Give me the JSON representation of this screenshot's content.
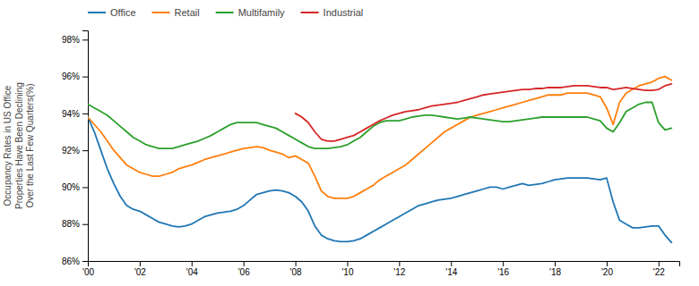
{
  "chart_data": {
    "type": "line",
    "ylabel": "Occupancy Rates in US Office\nProperties Have Been Declining\nOver the Last Few Quarters(%)",
    "xlim": [
      2000,
      2022.8
    ],
    "xticks": [
      {
        "value": 2000,
        "label": "'00"
      },
      {
        "value": 2002,
        "label": "'02"
      },
      {
        "value": 2004,
        "label": "'04"
      },
      {
        "value": 2006,
        "label": "'06"
      },
      {
        "value": 2008,
        "label": "'08"
      },
      {
        "value": 2010,
        "label": "'10"
      },
      {
        "value": 2012,
        "label": "'12"
      },
      {
        "value": 2014,
        "label": "'14"
      },
      {
        "value": 2016,
        "label": "'16"
      },
      {
        "value": 2018,
        "label": "'18"
      },
      {
        "value": 2020,
        "label": "'20"
      },
      {
        "value": 2022,
        "label": "'22"
      }
    ],
    "ylim": [
      86,
      98.5
    ],
    "yticks": [
      {
        "value": 86,
        "label": "86%"
      },
      {
        "value": 88,
        "label": "88%"
      },
      {
        "value": 90,
        "label": "90%"
      },
      {
        "value": 92,
        "label": "92%"
      },
      {
        "value": 94,
        "label": "94%"
      },
      {
        "value": 96,
        "label": "96%"
      },
      {
        "value": 98,
        "label": "98%"
      }
    ],
    "grid": false,
    "legend": "top-left",
    "series": [
      {
        "name": "Office",
        "x": [
          2000.0,
          2000.25,
          2000.5,
          2000.75,
          2001.0,
          2001.25,
          2001.5,
          2001.75,
          2002.0,
          2002.25,
          2002.5,
          2002.75,
          2003.0,
          2003.25,
          2003.5,
          2003.75,
          2004.0,
          2004.25,
          2004.5,
          2004.75,
          2005.0,
          2005.25,
          2005.5,
          2005.75,
          2006.0,
          2006.25,
          2006.5,
          2006.75,
          2007.0,
          2007.25,
          2007.5,
          2007.75,
          2008.0,
          2008.25,
          2008.5,
          2008.75,
          2009.0,
          2009.25,
          2009.5,
          2009.75,
          2010.0,
          2010.25,
          2010.5,
          2010.75,
          2011.0,
          2011.25,
          2011.5,
          2011.75,
          2012.0,
          2012.25,
          2012.5,
          2012.75,
          2013.0,
          2013.25,
          2013.5,
          2013.75,
          2014.0,
          2014.25,
          2014.5,
          2014.75,
          2015.0,
          2015.25,
          2015.5,
          2015.75,
          2016.0,
          2016.25,
          2016.5,
          2016.75,
          2017.0,
          2017.25,
          2017.5,
          2017.75,
          2018.0,
          2018.25,
          2018.5,
          2018.75,
          2019.0,
          2019.25,
          2019.5,
          2019.75,
          2020.0,
          2020.25,
          2020.5,
          2020.75,
          2021.0,
          2021.25,
          2021.5,
          2021.75,
          2022.0,
          2022.25,
          2022.5
        ],
        "values": [
          93.8,
          93.0,
          92.0,
          91.0,
          90.2,
          89.5,
          89.0,
          88.8,
          88.7,
          88.5,
          88.3,
          88.1,
          88.0,
          87.9,
          87.85,
          87.9,
          88.0,
          88.2,
          88.4,
          88.5,
          88.6,
          88.65,
          88.7,
          88.8,
          89.0,
          89.3,
          89.6,
          89.7,
          89.8,
          89.85,
          89.8,
          89.7,
          89.5,
          89.2,
          88.7,
          87.9,
          87.4,
          87.2,
          87.1,
          87.05,
          87.05,
          87.1,
          87.2,
          87.4,
          87.6,
          87.8,
          88.0,
          88.2,
          88.4,
          88.6,
          88.8,
          89.0,
          89.1,
          89.2,
          89.3,
          89.35,
          89.4,
          89.5,
          89.6,
          89.7,
          89.8,
          89.9,
          90.0,
          90.0,
          89.9,
          90.0,
          90.1,
          90.2,
          90.1,
          90.15,
          90.2,
          90.3,
          90.4,
          90.45,
          90.5,
          90.5,
          90.5,
          90.5,
          90.45,
          90.4,
          90.5,
          89.2,
          88.2,
          88.0,
          87.8,
          87.8,
          87.85,
          87.9,
          87.9,
          87.4,
          87.0
        ]
      },
      {
        "name": "Retail",
        "x": [
          2000.0,
          2000.25,
          2000.5,
          2000.75,
          2001.0,
          2001.25,
          2001.5,
          2001.75,
          2002.0,
          2002.25,
          2002.5,
          2002.75,
          2003.0,
          2003.25,
          2003.5,
          2003.75,
          2004.0,
          2004.25,
          2004.5,
          2004.75,
          2005.0,
          2005.25,
          2005.5,
          2005.75,
          2006.0,
          2006.25,
          2006.5,
          2006.75,
          2007.0,
          2007.25,
          2007.5,
          2007.75,
          2008.0,
          2008.25,
          2008.5,
          2008.75,
          2009.0,
          2009.25,
          2009.5,
          2009.75,
          2010.0,
          2010.25,
          2010.5,
          2010.75,
          2011.0,
          2011.25,
          2011.5,
          2011.75,
          2012.0,
          2012.25,
          2012.5,
          2012.75,
          2013.0,
          2013.25,
          2013.5,
          2013.75,
          2014.0,
          2014.25,
          2014.5,
          2014.75,
          2015.0,
          2015.25,
          2015.5,
          2015.75,
          2016.0,
          2016.25,
          2016.5,
          2016.75,
          2017.0,
          2017.25,
          2017.5,
          2017.75,
          2018.0,
          2018.25,
          2018.5,
          2018.75,
          2019.0,
          2019.25,
          2019.5,
          2019.75,
          2020.0,
          2020.25,
          2020.5,
          2020.75,
          2021.0,
          2021.25,
          2021.5,
          2021.75,
          2022.0,
          2022.25,
          2022.5
        ],
        "values": [
          93.8,
          93.4,
          93.0,
          92.5,
          92.0,
          91.6,
          91.2,
          91.0,
          90.8,
          90.7,
          90.6,
          90.6,
          90.7,
          90.8,
          91.0,
          91.1,
          91.2,
          91.35,
          91.5,
          91.6,
          91.7,
          91.8,
          91.9,
          92.0,
          92.1,
          92.15,
          92.2,
          92.15,
          92.0,
          91.9,
          91.8,
          91.6,
          91.7,
          91.5,
          91.3,
          90.6,
          89.8,
          89.5,
          89.4,
          89.4,
          89.4,
          89.5,
          89.7,
          89.9,
          90.1,
          90.4,
          90.6,
          90.8,
          91.0,
          91.2,
          91.5,
          91.8,
          92.1,
          92.4,
          92.7,
          93.0,
          93.2,
          93.4,
          93.6,
          93.8,
          93.9,
          94.0,
          94.1,
          94.2,
          94.3,
          94.4,
          94.5,
          94.6,
          94.7,
          94.8,
          94.9,
          95.0,
          95.0,
          95.0,
          95.1,
          95.1,
          95.1,
          95.1,
          95.0,
          94.9,
          94.3,
          93.4,
          94.6,
          95.1,
          95.3,
          95.5,
          95.6,
          95.7,
          95.9,
          96.0,
          95.8
        ]
      },
      {
        "name": "Multifamily",
        "x": [
          2000.0,
          2000.25,
          2000.5,
          2000.75,
          2001.0,
          2001.25,
          2001.5,
          2001.75,
          2002.0,
          2002.25,
          2002.5,
          2002.75,
          2003.0,
          2003.25,
          2003.5,
          2003.75,
          2004.0,
          2004.25,
          2004.5,
          2004.75,
          2005.0,
          2005.25,
          2005.5,
          2005.75,
          2006.0,
          2006.25,
          2006.5,
          2006.75,
          2007.0,
          2007.25,
          2007.5,
          2007.75,
          2008.0,
          2008.25,
          2008.5,
          2008.75,
          2009.0,
          2009.25,
          2009.5,
          2009.75,
          2010.0,
          2010.25,
          2010.5,
          2010.75,
          2011.0,
          2011.25,
          2011.5,
          2011.75,
          2012.0,
          2012.25,
          2012.5,
          2012.75,
          2013.0,
          2013.25,
          2013.5,
          2013.75,
          2014.0,
          2014.25,
          2014.5,
          2014.75,
          2015.0,
          2015.25,
          2015.5,
          2015.75,
          2016.0,
          2016.25,
          2016.5,
          2016.75,
          2017.0,
          2017.25,
          2017.5,
          2017.75,
          2018.0,
          2018.25,
          2018.5,
          2018.75,
          2019.0,
          2019.25,
          2019.5,
          2019.75,
          2020.0,
          2020.25,
          2020.5,
          2020.75,
          2021.0,
          2021.25,
          2021.5,
          2021.75,
          2022.0,
          2022.25,
          2022.5
        ],
        "values": [
          94.5,
          94.3,
          94.1,
          93.9,
          93.6,
          93.3,
          93.0,
          92.7,
          92.5,
          92.3,
          92.2,
          92.1,
          92.1,
          92.1,
          92.2,
          92.3,
          92.4,
          92.5,
          92.65,
          92.8,
          93.0,
          93.2,
          93.4,
          93.5,
          93.5,
          93.5,
          93.5,
          93.4,
          93.3,
          93.2,
          93.0,
          92.8,
          92.6,
          92.4,
          92.2,
          92.1,
          92.1,
          92.1,
          92.15,
          92.2,
          92.3,
          92.5,
          92.7,
          93.0,
          93.3,
          93.5,
          93.6,
          93.6,
          93.6,
          93.7,
          93.8,
          93.85,
          93.9,
          93.9,
          93.85,
          93.8,
          93.75,
          93.7,
          93.75,
          93.8,
          93.75,
          93.7,
          93.65,
          93.6,
          93.55,
          93.55,
          93.6,
          93.65,
          93.7,
          93.75,
          93.8,
          93.8,
          93.8,
          93.8,
          93.8,
          93.8,
          93.8,
          93.8,
          93.7,
          93.6,
          93.2,
          93.0,
          93.5,
          94.1,
          94.3,
          94.5,
          94.6,
          94.6,
          93.5,
          93.1,
          93.2
        ]
      },
      {
        "name": "Industrial",
        "x": [
          2008.0,
          2008.25,
          2008.5,
          2008.75,
          2009.0,
          2009.25,
          2009.5,
          2009.75,
          2010.0,
          2010.25,
          2010.5,
          2010.75,
          2011.0,
          2011.25,
          2011.5,
          2011.75,
          2012.0,
          2012.25,
          2012.5,
          2012.75,
          2013.0,
          2013.25,
          2013.5,
          2013.75,
          2014.0,
          2014.25,
          2014.5,
          2014.75,
          2015.0,
          2015.25,
          2015.5,
          2015.75,
          2016.0,
          2016.25,
          2016.5,
          2016.75,
          2017.0,
          2017.25,
          2017.5,
          2017.75,
          2018.0,
          2018.25,
          2018.5,
          2018.75,
          2019.0,
          2019.25,
          2019.5,
          2019.75,
          2020.0,
          2020.25,
          2020.5,
          2020.75,
          2021.0,
          2021.25,
          2021.5,
          2021.75,
          2022.0,
          2022.25,
          2022.5
        ],
        "values": [
          94.0,
          93.8,
          93.5,
          93.0,
          92.6,
          92.5,
          92.5,
          92.6,
          92.7,
          92.8,
          93.0,
          93.2,
          93.4,
          93.6,
          93.75,
          93.9,
          94.0,
          94.1,
          94.15,
          94.2,
          94.3,
          94.4,
          94.45,
          94.5,
          94.55,
          94.6,
          94.7,
          94.8,
          94.9,
          95.0,
          95.05,
          95.1,
          95.15,
          95.2,
          95.25,
          95.3,
          95.3,
          95.35,
          95.35,
          95.4,
          95.4,
          95.4,
          95.45,
          95.5,
          95.5,
          95.5,
          95.45,
          95.4,
          95.4,
          95.3,
          95.35,
          95.4,
          95.35,
          95.3,
          95.25,
          95.25,
          95.3,
          95.5,
          95.6
        ]
      }
    ]
  }
}
